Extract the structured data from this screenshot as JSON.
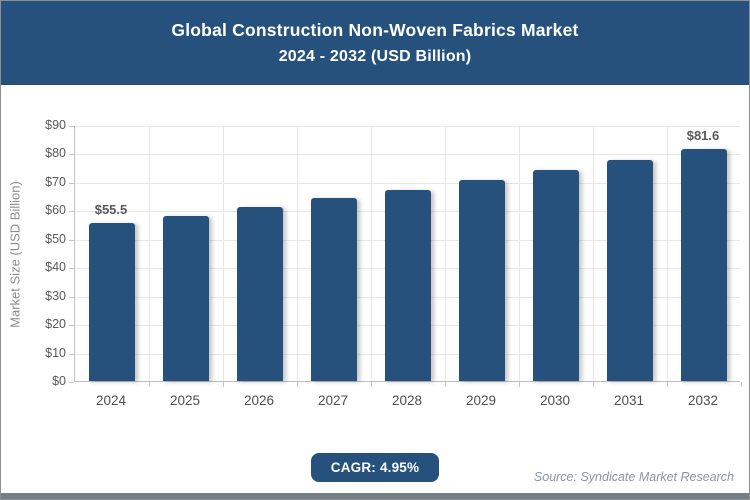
{
  "header": {
    "title_line1": "Global Construction Non-Woven Fabrics Market",
    "title_line2": "2024 - 2032 (USD Billion)",
    "bg_color": "#25517C",
    "text_color": "#FFFFFF"
  },
  "chart_data": {
    "type": "bar",
    "categories": [
      "2024",
      "2025",
      "2026",
      "2027",
      "2028",
      "2029",
      "2030",
      "2031",
      "2032"
    ],
    "values": [
      55.5,
      58.2,
      61.1,
      64.2,
      67.3,
      70.7,
      74.2,
      77.8,
      81.6
    ],
    "bar_labels": [
      {
        "index": 0,
        "text": "$55.5"
      },
      {
        "index": 8,
        "text": "$81.6"
      }
    ],
    "title": "Global Construction Non-Woven Fabrics Market 2024 - 2032 (USD Billion)",
    "xlabel": "",
    "ylabel": "Market Size (USD Billion)",
    "ylim": [
      0,
      90
    ],
    "ytick_step": 10,
    "ytick_prefix": "$",
    "grid": true,
    "legend": "none",
    "bar_color": "#25517C",
    "gridline_color": "#e7e7e7",
    "tick_label_color": "#595959"
  },
  "footer": {
    "cagr_label": "CAGR: 4.95%",
    "source": "Source: Syndicate Market Research"
  }
}
